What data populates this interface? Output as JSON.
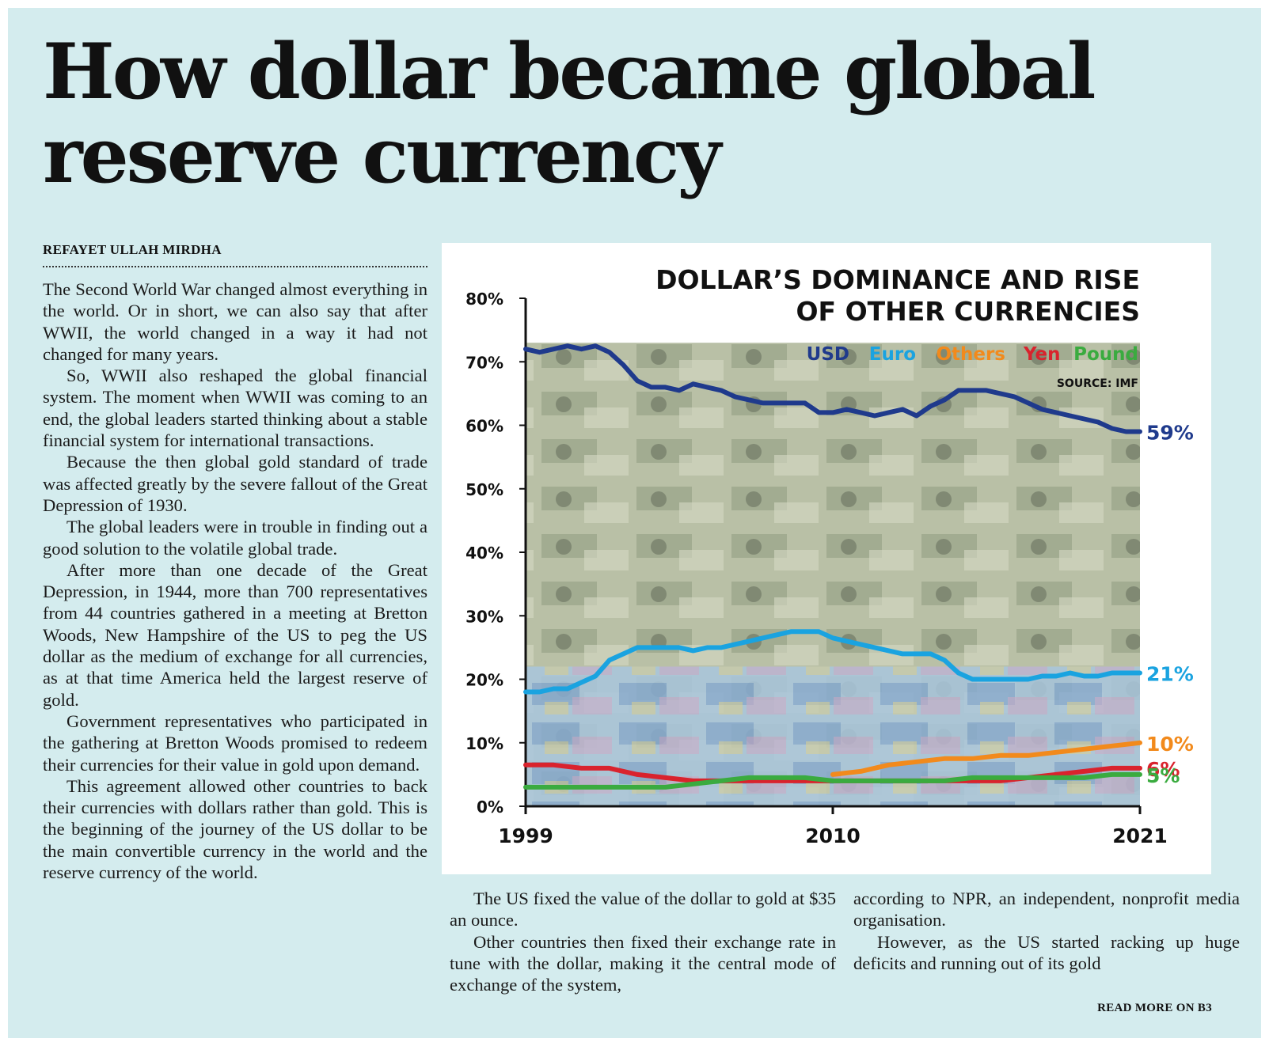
{
  "article": {
    "headline": "How dollar became global reserve currency",
    "byline": "REFAYET ULLAH MIRDHA",
    "col1": [
      "The Second World War changed almost everything in the world. Or in short, we can also say that after WWII, the world changed in a way it had not changed for many years.",
      "So, WWII also reshaped the global financial system. The moment when WWII was coming to an end, the global leaders started thinking about a stable financial system for international transactions.",
      "Because the then global gold standard of trade was affected greatly by the severe fallout of the Great Depression of 1930.",
      "The global leaders were in trouble in finding out a good solution to the volatile global trade.",
      "After more than one decade of the Great Depression, in 1944, more than 700 representatives from 44 countries gathered in a meeting at Bretton Woods, New Hampshire of the US to peg the US dollar as the medium of exchange for all currencies, as at that time America held the largest reserve of gold.",
      "Government representatives who participated in the gathering at Bretton Woods promised to redeem their currencies for their value in gold upon demand.",
      "This agreement allowed other countries to back their currencies with dollars rather than gold. This is the beginning of the journey of the US dollar to be the main convertible currency in the world and the reserve currency of the world."
    ],
    "col2": [
      "The US fixed the value of the dollar to gold at $35 an ounce.",
      "Other countries then fixed their exchange rate in tune with the dollar, making it the central mode of exchange of the system,"
    ],
    "col3": [
      "according to NPR, an independent, nonprofit media organisation.",
      "However, as the US started racking up huge deficits and running out of its gold"
    ],
    "read_more": "READ MORE ON B3"
  },
  "colors": {
    "background": "#d4ecee",
    "usd": "#1f3a8c",
    "euro": "#1aa3e0",
    "others": "#f28a1c",
    "yen": "#d9232d",
    "pound": "#3aab3f"
  },
  "chart_data": {
    "type": "line",
    "title_lines": [
      "DOLLAR’S DOMINANCE AND RISE",
      "OF OTHER CURRENCIES"
    ],
    "source": "SOURCE: IMF",
    "y_ticks": [
      "0%",
      "10%",
      "20%",
      "30%",
      "40%",
      "50%",
      "60%",
      "70%",
      "80%"
    ],
    "x_ticks": [
      "1999",
      "2010",
      "2021"
    ],
    "xlim": [
      1999,
      2021
    ],
    "ylim": [
      0,
      80
    ],
    "legend_placement": "top-right",
    "series": [
      {
        "name": "USD",
        "color": "#1f3a8c",
        "end_label": "59%",
        "points": [
          [
            1999,
            72
          ],
          [
            1999.5,
            71.5
          ],
          [
            2000,
            72
          ],
          [
            2000.5,
            72.5
          ],
          [
            2001,
            72
          ],
          [
            2001.5,
            72.5
          ],
          [
            2002,
            71.5
          ],
          [
            2002.5,
            69.5
          ],
          [
            2003,
            67
          ],
          [
            2003.5,
            66
          ],
          [
            2004,
            66
          ],
          [
            2004.5,
            65.5
          ],
          [
            2005,
            66.5
          ],
          [
            2005.5,
            66
          ],
          [
            2006,
            65.5
          ],
          [
            2006.5,
            64.5
          ],
          [
            2007,
            64
          ],
          [
            2007.5,
            63.5
          ],
          [
            2008,
            63.5
          ],
          [
            2008.5,
            63.5
          ],
          [
            2009,
            63.5
          ],
          [
            2009.5,
            62
          ],
          [
            2010,
            62
          ],
          [
            2010.5,
            62.5
          ],
          [
            2011,
            62
          ],
          [
            2011.5,
            61.5
          ],
          [
            2012,
            62
          ],
          [
            2012.5,
            62.5
          ],
          [
            2013,
            61.5
          ],
          [
            2013.5,
            63
          ],
          [
            2014,
            64
          ],
          [
            2014.5,
            65.5
          ],
          [
            2015,
            65.5
          ],
          [
            2015.5,
            65.5
          ],
          [
            2016,
            65
          ],
          [
            2016.5,
            64.5
          ],
          [
            2017,
            63.5
          ],
          [
            2017.5,
            62.5
          ],
          [
            2018,
            62
          ],
          [
            2018.5,
            61.5
          ],
          [
            2019,
            61
          ],
          [
            2019.5,
            60.5
          ],
          [
            2020,
            59.5
          ],
          [
            2020.5,
            59
          ],
          [
            2021,
            59
          ]
        ]
      },
      {
        "name": "Euro",
        "color": "#1aa3e0",
        "end_label": "21%",
        "points": [
          [
            1999,
            18
          ],
          [
            1999.5,
            18
          ],
          [
            2000,
            18.5
          ],
          [
            2000.5,
            18.5
          ],
          [
            2001,
            19.5
          ],
          [
            2001.5,
            20.5
          ],
          [
            2002,
            23
          ],
          [
            2002.5,
            24
          ],
          [
            2003,
            25
          ],
          [
            2003.5,
            25
          ],
          [
            2004,
            25
          ],
          [
            2004.5,
            25
          ],
          [
            2005,
            24.5
          ],
          [
            2005.5,
            25
          ],
          [
            2006,
            25
          ],
          [
            2006.5,
            25.5
          ],
          [
            2007,
            26
          ],
          [
            2007.5,
            26.5
          ],
          [
            2008,
            27
          ],
          [
            2008.5,
            27.5
          ],
          [
            2009,
            27.5
          ],
          [
            2009.5,
            27.5
          ],
          [
            2010,
            26.5
          ],
          [
            2010.5,
            26
          ],
          [
            2011,
            25.5
          ],
          [
            2011.5,
            25
          ],
          [
            2012,
            24.5
          ],
          [
            2012.5,
            24
          ],
          [
            2013,
            24
          ],
          [
            2013.5,
            24
          ],
          [
            2014,
            23
          ],
          [
            2014.5,
            21
          ],
          [
            2015,
            20
          ],
          [
            2015.5,
            20
          ],
          [
            2016,
            20
          ],
          [
            2016.5,
            20
          ],
          [
            2017,
            20
          ],
          [
            2017.5,
            20.5
          ],
          [
            2018,
            20.5
          ],
          [
            2018.5,
            21
          ],
          [
            2019,
            20.5
          ],
          [
            2019.5,
            20.5
          ],
          [
            2020,
            21
          ],
          [
            2020.5,
            21
          ],
          [
            2021,
            21
          ]
        ]
      },
      {
        "name": "Others",
        "color": "#f28a1c",
        "end_label": "10%",
        "points": [
          [
            2010,
            5
          ],
          [
            2011,
            5.5
          ],
          [
            2012,
            6.5
          ],
          [
            2013,
            7
          ],
          [
            2014,
            7.5
          ],
          [
            2015,
            7.5
          ],
          [
            2016,
            8
          ],
          [
            2017,
            8
          ],
          [
            2018,
            8.5
          ],
          [
            2019,
            9
          ],
          [
            2020,
            9.5
          ],
          [
            2021,
            10
          ]
        ]
      },
      {
        "name": "Yen",
        "color": "#d9232d",
        "end_label": "6%",
        "points": [
          [
            1999,
            6.5
          ],
          [
            2000,
            6.5
          ],
          [
            2001,
            6
          ],
          [
            2002,
            6
          ],
          [
            2003,
            5
          ],
          [
            2004,
            4.5
          ],
          [
            2005,
            4
          ],
          [
            2006,
            4
          ],
          [
            2007,
            4
          ],
          [
            2008,
            4
          ],
          [
            2009,
            4
          ],
          [
            2010,
            4
          ],
          [
            2011,
            4
          ],
          [
            2012,
            4
          ],
          [
            2013,
            4
          ],
          [
            2014,
            4
          ],
          [
            2015,
            4
          ],
          [
            2016,
            4
          ],
          [
            2017,
            4.5
          ],
          [
            2018,
            5
          ],
          [
            2019,
            5.5
          ],
          [
            2020,
            6
          ],
          [
            2021,
            6
          ]
        ]
      },
      {
        "name": "Pound",
        "color": "#3aab3f",
        "end_label": "5%",
        "points": [
          [
            1999,
            3
          ],
          [
            2000,
            3
          ],
          [
            2001,
            3
          ],
          [
            2002,
            3
          ],
          [
            2003,
            3
          ],
          [
            2004,
            3
          ],
          [
            2005,
            3.5
          ],
          [
            2006,
            4
          ],
          [
            2007,
            4.5
          ],
          [
            2008,
            4.5
          ],
          [
            2009,
            4.5
          ],
          [
            2010,
            4
          ],
          [
            2011,
            4
          ],
          [
            2012,
            4
          ],
          [
            2013,
            4
          ],
          [
            2014,
            4
          ],
          [
            2015,
            4.5
          ],
          [
            2016,
            4.5
          ],
          [
            2017,
            4.5
          ],
          [
            2018,
            4.5
          ],
          [
            2019,
            4.5
          ],
          [
            2020,
            5
          ],
          [
            2021,
            5
          ]
        ]
      }
    ]
  }
}
